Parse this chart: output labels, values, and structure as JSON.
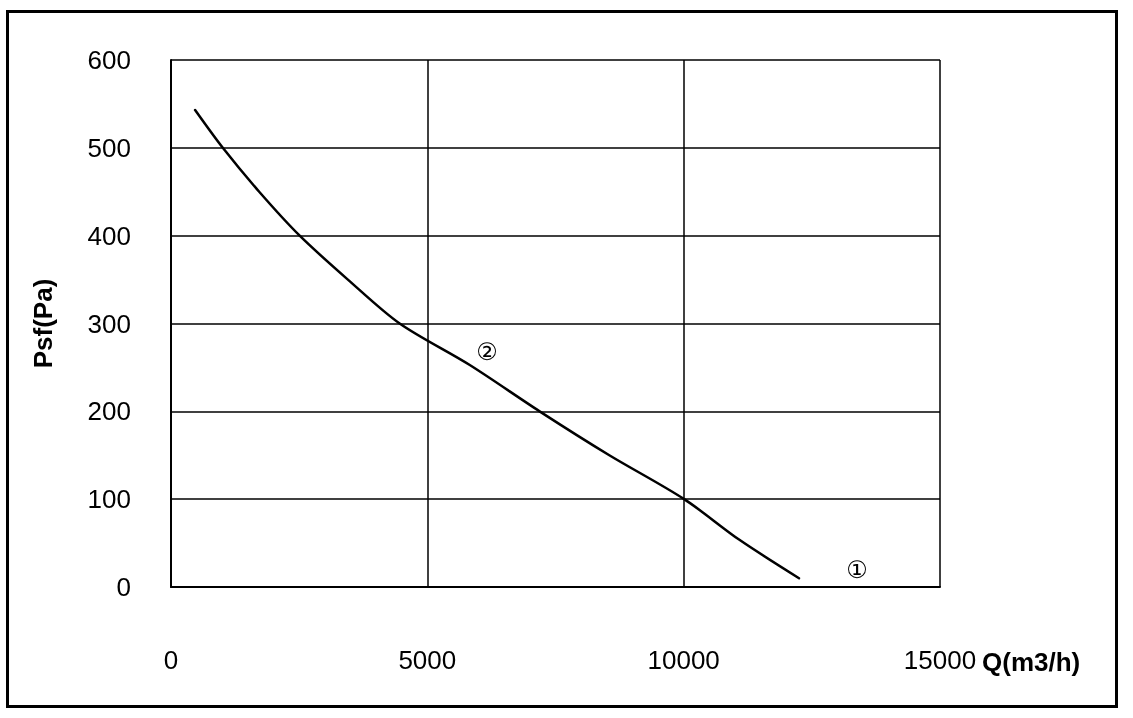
{
  "chart_data": {
    "type": "line",
    "xlabel": "Q(m3/h)",
    "ylabel": "Psf(Pa)",
    "x": [
      470,
      1010,
      1720,
      2510,
      3450,
      4460,
      5820,
      7190,
      8550,
      10010,
      11080,
      12250
    ],
    "series": [
      {
        "color": "#000000",
        "values": [
          543,
          500,
          450,
          400,
          350,
          300,
          253,
          200,
          150,
          100,
          54,
          10
        ]
      }
    ],
    "xlim": [
      0,
      15000
    ],
    "xticks": [
      0,
      5000,
      10000,
      15000
    ],
    "ylim": [
      0,
      600
    ],
    "yticks": [
      0,
      100,
      200,
      300,
      400,
      500,
      600
    ],
    "grid": true,
    "marker": "none",
    "line_style": "solid",
    "annotations": [
      "②",
      "①"
    ]
  }
}
